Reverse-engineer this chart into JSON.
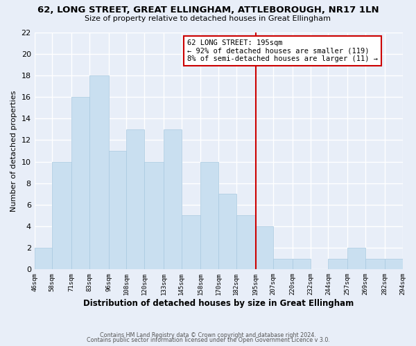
{
  "title": "62, LONG STREET, GREAT ELLINGHAM, ATTLEBOROUGH, NR17 1LN",
  "subtitle": "Size of property relative to detached houses in Great Ellingham",
  "xlabel": "Distribution of detached houses by size in Great Ellingham",
  "ylabel": "Number of detached properties",
  "footer1": "Contains HM Land Registry data © Crown copyright and database right 2024.",
  "footer2": "Contains public sector information licensed under the Open Government Licence v 3.0.",
  "bin_edges": [
    46,
    58,
    71,
    83,
    96,
    108,
    120,
    133,
    145,
    158,
    170,
    182,
    195,
    207,
    220,
    232,
    244,
    257,
    269,
    282,
    294
  ],
  "counts": [
    2,
    10,
    16,
    18,
    11,
    13,
    10,
    13,
    5,
    10,
    7,
    5,
    4,
    1,
    1,
    0,
    1,
    2,
    1,
    1
  ],
  "bar_color": "#c9dff0",
  "bar_edge_color": "#a8c8e0",
  "reference_line_x": 195,
  "reference_line_color": "#cc0000",
  "annotation_line1": "62 LONG STREET: 195sqm",
  "annotation_line2": "← 92% of detached houses are smaller (119)",
  "annotation_line3": "8% of semi-detached houses are larger (11) →",
  "annotation_box_edge_color": "#cc0000",
  "ylim": [
    0,
    22
  ],
  "tick_labels": [
    "46sqm",
    "58sqm",
    "71sqm",
    "83sqm",
    "96sqm",
    "108sqm",
    "120sqm",
    "133sqm",
    "145sqm",
    "158sqm",
    "170sqm",
    "182sqm",
    "195sqm",
    "207sqm",
    "220sqm",
    "232sqm",
    "244sqm",
    "257sqm",
    "269sqm",
    "282sqm",
    "294sqm"
  ],
  "background_color": "#e8eef8",
  "grid_color": "#ffffff",
  "yticks": [
    0,
    2,
    4,
    6,
    8,
    10,
    12,
    14,
    16,
    18,
    20,
    22
  ]
}
